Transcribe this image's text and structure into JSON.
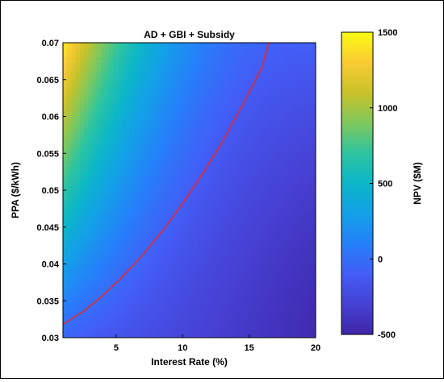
{
  "chart_data": {
    "type": "heatmap",
    "title": "AD + GBI + Subsidy",
    "xlabel": "Interest Rate (%)",
    "ylabel": "PPA ($/kWh)",
    "xlim": [
      1,
      20
    ],
    "ylim": [
      0.03,
      0.07
    ],
    "x_ticks": [
      5,
      10,
      15,
      20
    ],
    "y_ticks": [
      0.03,
      0.035,
      0.04,
      0.045,
      0.05,
      0.055,
      0.06,
      0.065,
      0.07
    ],
    "colorbar": {
      "label": "NPV ($M)",
      "range": [
        -500,
        1500
      ],
      "ticks": [
        -500,
        0,
        500,
        1000,
        1500
      ],
      "colormap": "parula"
    },
    "zero_contour": {
      "color": "#e8262a",
      "x": [
        1,
        2.5,
        4,
        5.5,
        7,
        8.5,
        10,
        11.5,
        13,
        14.5,
        16,
        16.5
      ],
      "y": [
        0.0318,
        0.0335,
        0.0357,
        0.0383,
        0.0412,
        0.0445,
        0.0482,
        0.0522,
        0.0566,
        0.0615,
        0.0668,
        0.0702
      ]
    },
    "corner_values": {
      "x": [
        1,
        20
      ],
      "y": [
        0.03,
        0.07
      ],
      "npv": [
        [
          -60,
          -460
        ],
        [
          1450,
          -90
        ]
      ]
    },
    "grid": false
  }
}
